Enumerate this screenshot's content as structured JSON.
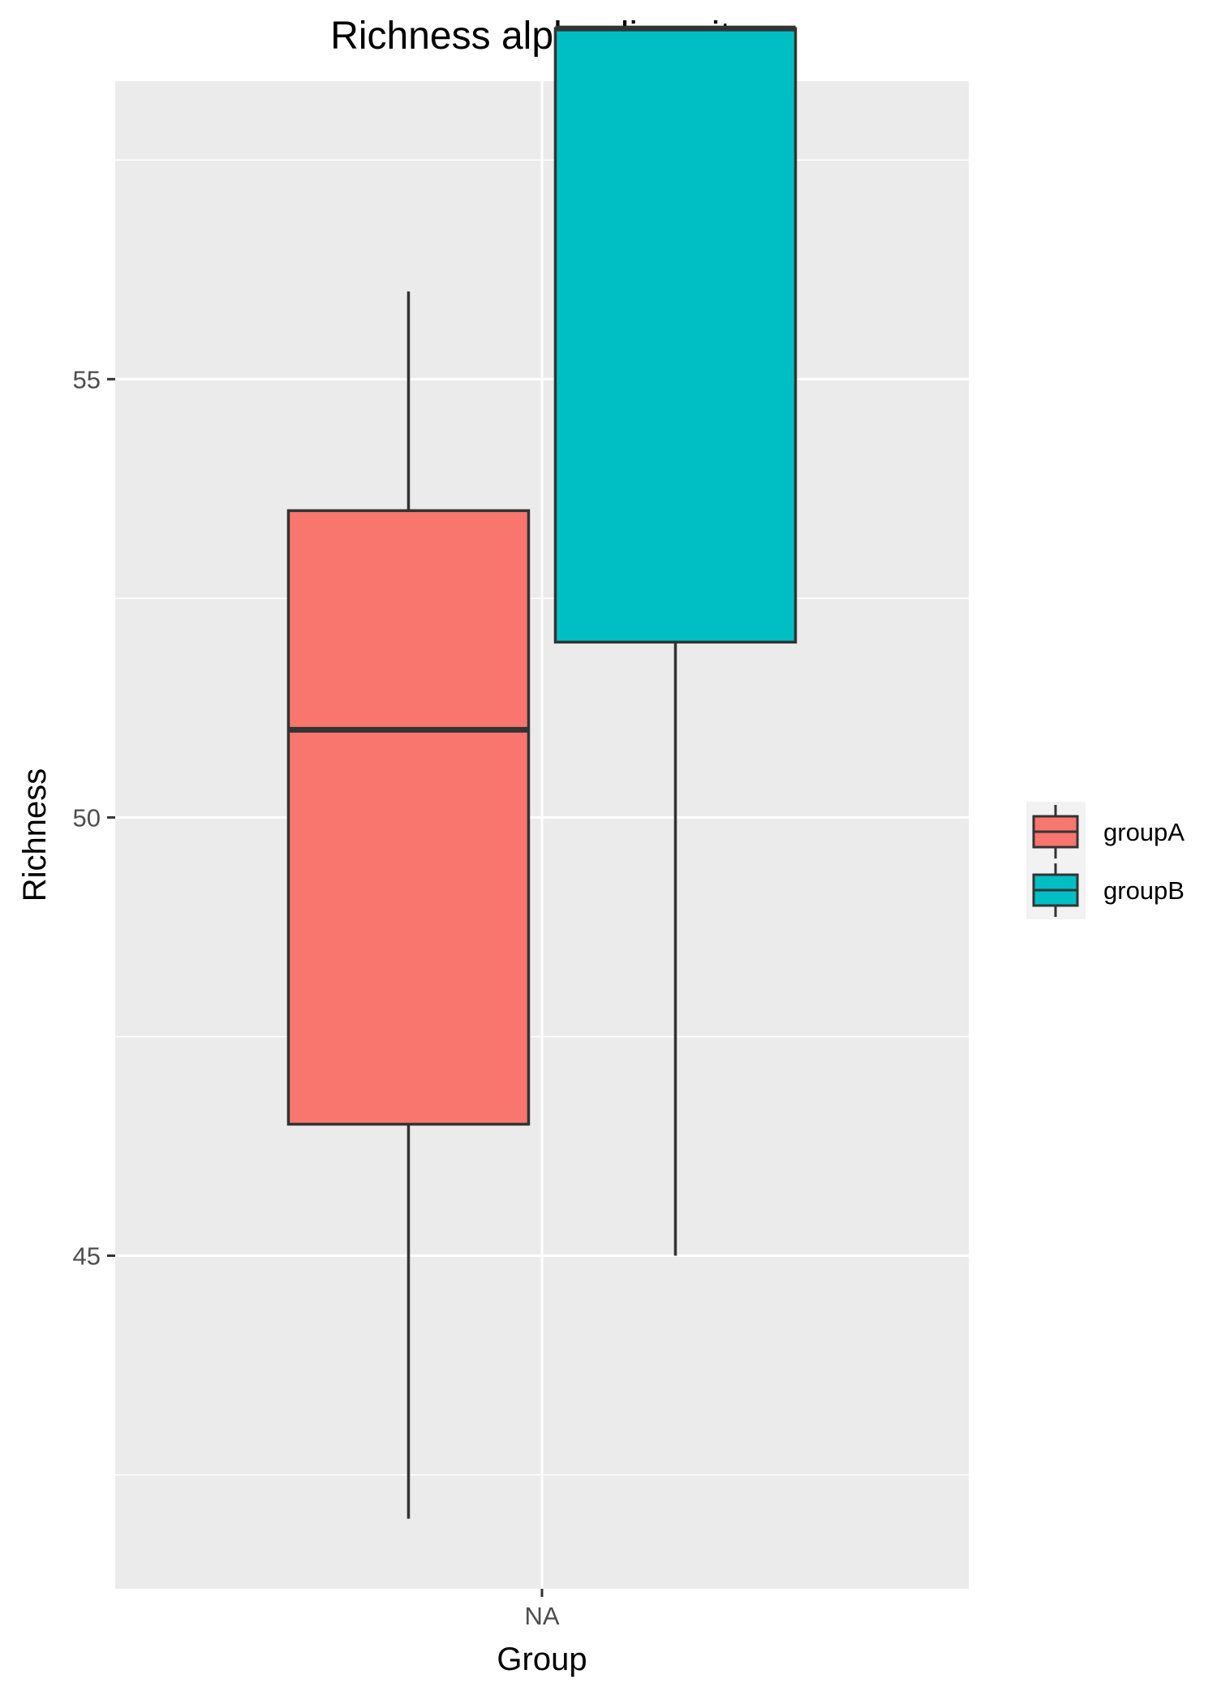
{
  "chart_data": {
    "type": "boxplot",
    "title": "Richness alpha diversity",
    "xlabel": "Group",
    "ylabel": "Richness",
    "categories": [
      "NA"
    ],
    "ylim": [
      41.2,
      58.4
    ],
    "y_ticks": [
      45,
      50,
      55
    ],
    "grid": true,
    "legend_position": "right",
    "series": [
      {
        "name": "groupA",
        "color": "#F8766D",
        "min": 42,
        "q1": 46.5,
        "median": 51,
        "q3": 53.5,
        "max": 56
      },
      {
        "name": "groupB",
        "color": "#00BFC4",
        "min": 45,
        "q1": 52,
        "median": 59,
        "q3": 59,
        "max": 59
      }
    ],
    "colors": {
      "panel_background": "#EBEBEB",
      "grid_line": "#FFFFFF",
      "box_outline": "#333333",
      "legend_background": "#F2F2F2"
    }
  }
}
